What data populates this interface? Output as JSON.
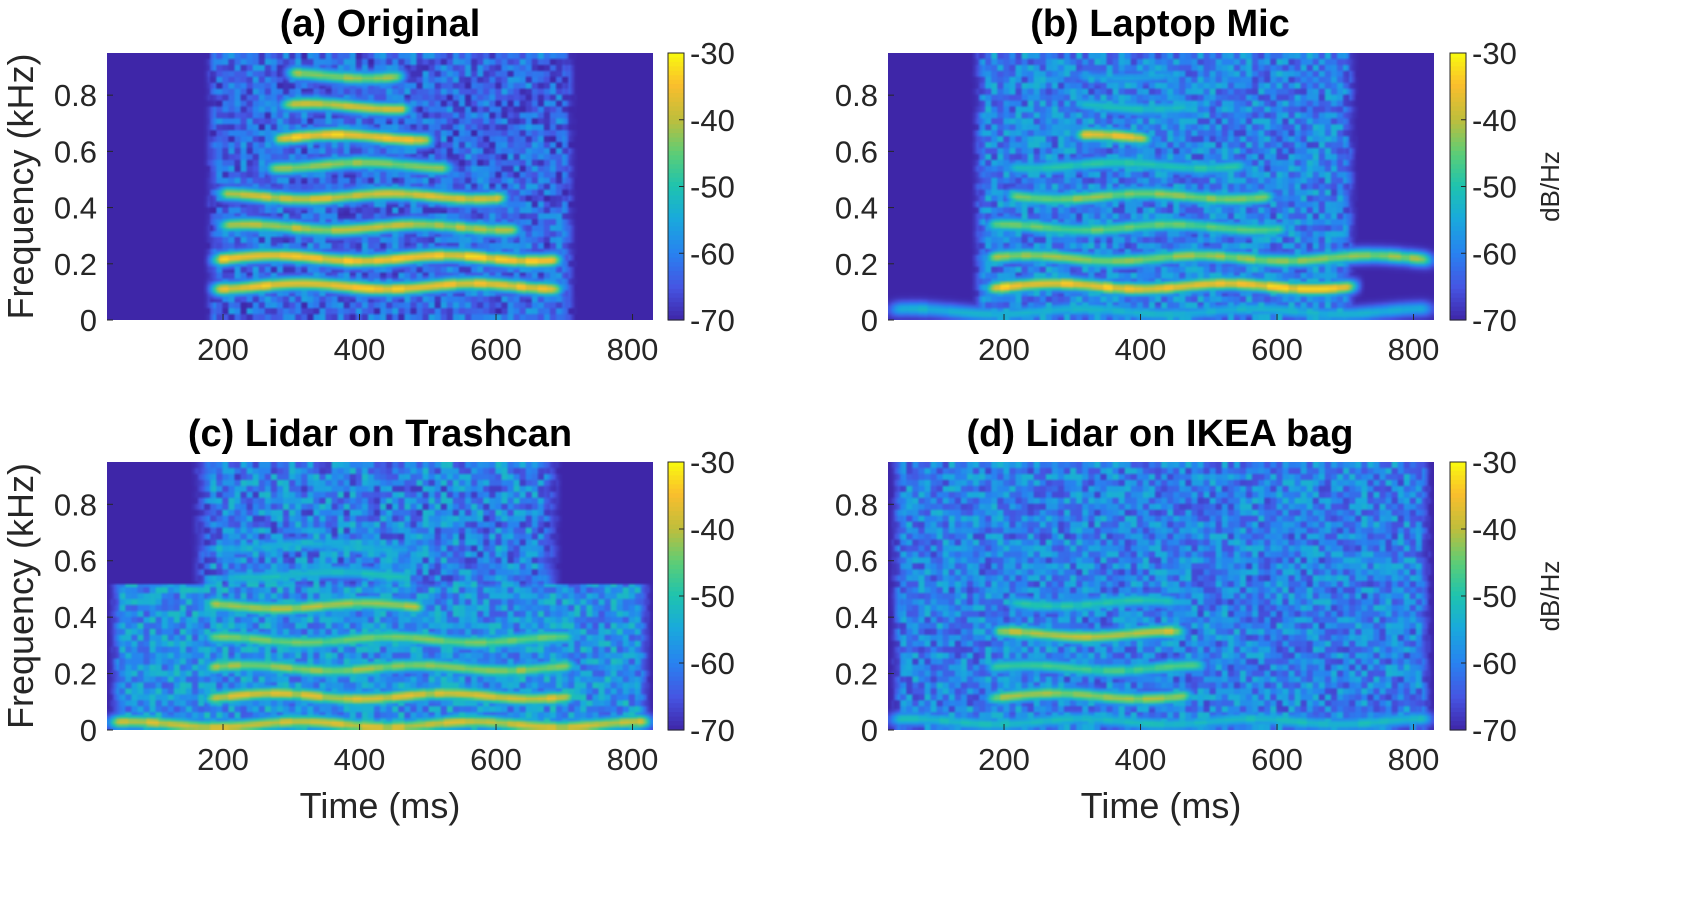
{
  "chart_data": [
    {
      "id": "a",
      "type": "heatmap",
      "title": "(a) Original",
      "xlabel": "",
      "ylabel": "Frequency (kHz)",
      "xlim": [
        30,
        830
      ],
      "ylim": [
        0,
        0.95
      ],
      "xticks": [
        200,
        400,
        600,
        800
      ],
      "xtick_labels": [
        "200",
        "400",
        "600",
        "800"
      ],
      "yticks": [
        0,
        0.2,
        0.4,
        0.6,
        0.8
      ],
      "ytick_labels": [
        "0",
        "0.2",
        "0.4",
        "0.6",
        "0.8"
      ],
      "colorbar": {
        "label": "",
        "range": [
          -70,
          -30
        ],
        "ticks": [
          -30,
          -40,
          -50,
          -60,
          -70
        ],
        "tick_labels": [
          "-30",
          "-40",
          "-50",
          "-60",
          "-70"
        ]
      },
      "background_db": -70,
      "noise": {
        "t_start": 170,
        "t_end": 720,
        "f_max": 0.95,
        "level_db": -63
      },
      "harmonics": [
        {
          "f0_khz": 0.12,
          "t_start": 180,
          "t_end": 700,
          "peak_db": -33
        },
        {
          "f0_khz": 0.22,
          "t_start": 180,
          "t_end": 700,
          "peak_db": -32
        },
        {
          "f0_khz": 0.33,
          "t_start": 190,
          "t_end": 640,
          "peak_db": -38
        },
        {
          "f0_khz": 0.44,
          "t_start": 190,
          "t_end": 620,
          "peak_db": -36
        },
        {
          "f0_khz": 0.55,
          "t_start": 260,
          "t_end": 540,
          "peak_db": -40
        },
        {
          "f0_khz": 0.65,
          "t_start": 270,
          "t_end": 510,
          "peak_db": -32
        },
        {
          "f0_khz": 0.76,
          "t_start": 280,
          "t_end": 480,
          "peak_db": -37
        },
        {
          "f0_khz": 0.87,
          "t_start": 290,
          "t_end": 470,
          "peak_db": -40
        }
      ]
    },
    {
      "id": "b",
      "type": "heatmap",
      "title": "(b) Laptop Mic",
      "xlabel": "",
      "ylabel": "",
      "xlim": [
        30,
        830
      ],
      "ylim": [
        0,
        0.95
      ],
      "xticks": [
        200,
        400,
        600,
        800
      ],
      "xtick_labels": [
        "200",
        "400",
        "600",
        "800"
      ],
      "yticks": [
        0,
        0.2,
        0.4,
        0.6,
        0.8
      ],
      "ytick_labels": [
        "0",
        "0.2",
        "0.4",
        "0.6",
        "0.8"
      ],
      "colorbar": {
        "label": "dB/Hz",
        "range": [
          -70,
          -30
        ],
        "ticks": [
          -30,
          -40,
          -50,
          -60,
          -70
        ],
        "tick_labels": [
          "-30",
          "-40",
          "-50",
          "-60",
          "-70"
        ]
      },
      "background_db": -70,
      "noise": {
        "t_start": 150,
        "t_end": 720,
        "f_max": 0.95,
        "level_db": -60
      },
      "harmonics": [
        {
          "f0_khz": 0.03,
          "t_start": 30,
          "t_end": 830,
          "peak_db": -52
        },
        {
          "f0_khz": 0.12,
          "t_start": 170,
          "t_end": 720,
          "peak_db": -32
        },
        {
          "f0_khz": 0.22,
          "t_start": 170,
          "t_end": 830,
          "peak_db": -40
        },
        {
          "f0_khz": 0.33,
          "t_start": 170,
          "t_end": 620,
          "peak_db": -43
        },
        {
          "f0_khz": 0.44,
          "t_start": 200,
          "t_end": 600,
          "peak_db": -41
        },
        {
          "f0_khz": 0.55,
          "t_start": 200,
          "t_end": 560,
          "peak_db": -48
        },
        {
          "f0_khz": 0.65,
          "t_start": 300,
          "t_end": 420,
          "peak_db": -34
        },
        {
          "f0_khz": 0.76,
          "t_start": 300,
          "t_end": 480,
          "peak_db": -50
        },
        {
          "f0_khz": 0.87,
          "t_start": 300,
          "t_end": 460,
          "peak_db": -55
        }
      ]
    },
    {
      "id": "c",
      "type": "heatmap",
      "title": "(c) Lidar on Trashcan",
      "xlabel": "Time (ms)",
      "ylabel": "Frequency (kHz)",
      "xlim": [
        30,
        830
      ],
      "ylim": [
        0,
        0.95
      ],
      "xticks": [
        200,
        400,
        600,
        800
      ],
      "xtick_labels": [
        "200",
        "400",
        "600",
        "800"
      ],
      "yticks": [
        0,
        0.2,
        0.4,
        0.6,
        0.8
      ],
      "ytick_labels": [
        "0",
        "0.2",
        "0.4",
        "0.6",
        "0.8"
      ],
      "colorbar": {
        "label": "",
        "range": [
          -70,
          -30
        ],
        "ticks": [
          -30,
          -40,
          -50,
          -60,
          -70
        ],
        "tick_labels": [
          "-30",
          "-40",
          "-50",
          "-60",
          "-70"
        ]
      },
      "background_db": -70,
      "noise": {
        "t_start": 30,
        "t_end": 830,
        "f_max": 0.52,
        "level_db": -58,
        "upper_region": {
          "t_start": 150,
          "t_end": 700,
          "f_max": 0.95,
          "level_db": -60
        }
      },
      "harmonics": [
        {
          "f0_khz": 0.02,
          "t_start": 30,
          "t_end": 830,
          "peak_db": -36
        },
        {
          "f0_khz": 0.12,
          "t_start": 170,
          "t_end": 720,
          "peak_db": -36
        },
        {
          "f0_khz": 0.22,
          "t_start": 170,
          "t_end": 720,
          "peak_db": -40
        },
        {
          "f0_khz": 0.32,
          "t_start": 170,
          "t_end": 720,
          "peak_db": -42
        },
        {
          "f0_khz": 0.44,
          "t_start": 170,
          "t_end": 500,
          "peak_db": -38
        },
        {
          "f0_khz": 0.55,
          "t_start": 200,
          "t_end": 480,
          "peak_db": -50
        },
        {
          "f0_khz": 0.65,
          "t_start": 200,
          "t_end": 480,
          "peak_db": -53
        }
      ]
    },
    {
      "id": "d",
      "type": "heatmap",
      "title": "(d) Lidar on IKEA bag",
      "xlabel": "Time (ms)",
      "ylabel": "",
      "xlim": [
        30,
        830
      ],
      "ylim": [
        0,
        0.95
      ],
      "xticks": [
        200,
        400,
        600,
        800
      ],
      "xtick_labels": [
        "200",
        "400",
        "600",
        "800"
      ],
      "yticks": [
        0,
        0.2,
        0.4,
        0.6,
        0.8
      ],
      "ytick_labels": [
        "0",
        "0.2",
        "0.4",
        "0.6",
        "0.8"
      ],
      "colorbar": {
        "label": "dB/Hz",
        "range": [
          -70,
          -30
        ],
        "ticks": [
          -30,
          -40,
          -50,
          -60,
          -70
        ],
        "tick_labels": [
          "-30",
          "-40",
          "-50",
          "-60",
          "-70"
        ]
      },
      "background_db": -70,
      "noise": {
        "t_start": 30,
        "t_end": 830,
        "f_max": 0.95,
        "level_db": -60
      },
      "harmonics": [
        {
          "f0_khz": 0.03,
          "t_start": 30,
          "t_end": 830,
          "peak_db": -50
        },
        {
          "f0_khz": 0.12,
          "t_start": 170,
          "t_end": 480,
          "peak_db": -40
        },
        {
          "f0_khz": 0.22,
          "t_start": 170,
          "t_end": 500,
          "peak_db": -45
        },
        {
          "f0_khz": 0.34,
          "t_start": 180,
          "t_end": 470,
          "peak_db": -37
        },
        {
          "f0_khz": 0.45,
          "t_start": 200,
          "t_end": 460,
          "peak_db": -48
        }
      ]
    }
  ]
}
